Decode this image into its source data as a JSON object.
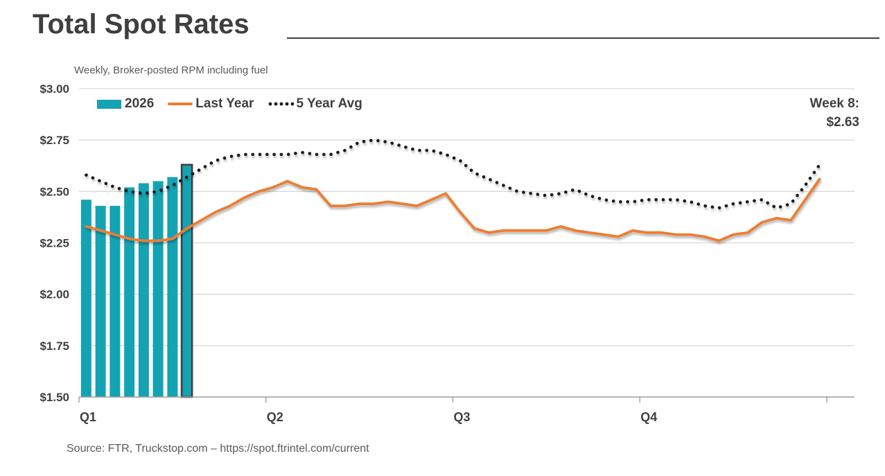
{
  "title": "Total Spot Rates",
  "subtitle": "Weekly, Broker-posted RPM including fuel",
  "annotation": {
    "line1": "Week 8:",
    "line2": "$2.63"
  },
  "source_note": "Source: FTR, Truckstop.com – https://spot.ftrintel.com/current",
  "colors": {
    "teal_2026": "#14A3B3",
    "orange_last_year": "#ED7D31",
    "dotted_5yr_avg": "#1A1A1A",
    "highlight_outline": "#3F3F3F",
    "gridline": "#D9D9D9",
    "axis_line": "#9E9E9E",
    "heading_text": "#3F3F3F",
    "muted_text": "#595959"
  },
  "legend": {
    "items": [
      {
        "label": "2026",
        "swatch": "bar"
      },
      {
        "label": "Last Year",
        "swatch": "line"
      },
      {
        "label": "5 Year Avg",
        "swatch": "dots"
      }
    ]
  },
  "chart_data": {
    "type": "combo bar+line",
    "title": "Total Spot Rates",
    "subtitle": "Weekly, Broker-posted RPM including fuel",
    "x_unit": "week of year",
    "weeks": 52,
    "xlabel": "",
    "ylabel": "Broker-posted rate per mile including fuel ($)",
    "ylim": [
      1.5,
      3.0
    ],
    "grid": "horizontal",
    "legend_position": "top-left",
    "x_tick_weeks": [
      0,
      13,
      26,
      39,
      52
    ],
    "x_tick_labels": [
      "Q1",
      "Q2",
      "Q3",
      "Q4"
    ],
    "y_tick_labels": [
      "$3.00",
      "$2.75",
      "$2.50",
      "$2.25",
      "$2.00",
      "$1.75",
      "$1.50"
    ],
    "y_tick_values": [
      3.0,
      2.75,
      2.5,
      2.25,
      2.0,
      1.75,
      1.5
    ],
    "highlight": {
      "series": "2026",
      "week": 8,
      "value": 2.63,
      "callout": "Week 8: $2.63"
    },
    "series": [
      {
        "name": "2026",
        "type": "bar",
        "start_week": 1,
        "values": [
          2.46,
          2.43,
          2.43,
          2.52,
          2.54,
          2.55,
          2.57,
          2.63
        ],
        "highlight_last": true
      },
      {
        "name": "Last Year",
        "type": "line",
        "start_week": 1,
        "values": [
          2.33,
          2.31,
          2.29,
          2.27,
          2.26,
          2.26,
          2.27,
          2.32,
          2.36,
          2.4,
          2.43,
          2.47,
          2.5,
          2.52,
          2.55,
          2.52,
          2.51,
          2.43,
          2.43,
          2.44,
          2.44,
          2.45,
          2.44,
          2.43,
          2.46,
          2.49,
          2.4,
          2.32,
          2.3,
          2.31,
          2.31,
          2.31,
          2.31,
          2.33,
          2.31,
          2.3,
          2.29,
          2.28,
          2.31,
          2.3,
          2.3,
          2.29,
          2.29,
          2.28,
          2.26,
          2.29,
          2.3,
          2.35,
          2.37,
          2.36,
          2.46,
          2.56
        ]
      },
      {
        "name": "5 Year Avg",
        "type": "dotted-line",
        "start_week": 1,
        "values": [
          2.58,
          2.55,
          2.52,
          2.5,
          2.49,
          2.5,
          2.53,
          2.57,
          2.61,
          2.65,
          2.67,
          2.68,
          2.68,
          2.68,
          2.68,
          2.69,
          2.68,
          2.68,
          2.7,
          2.74,
          2.75,
          2.74,
          2.72,
          2.7,
          2.7,
          2.68,
          2.65,
          2.59,
          2.56,
          2.53,
          2.5,
          2.49,
          2.48,
          2.49,
          2.51,
          2.48,
          2.46,
          2.45,
          2.45,
          2.46,
          2.46,
          2.46,
          2.45,
          2.43,
          2.42,
          2.44,
          2.45,
          2.46,
          2.42,
          2.44,
          2.53,
          2.63
        ]
      }
    ]
  }
}
